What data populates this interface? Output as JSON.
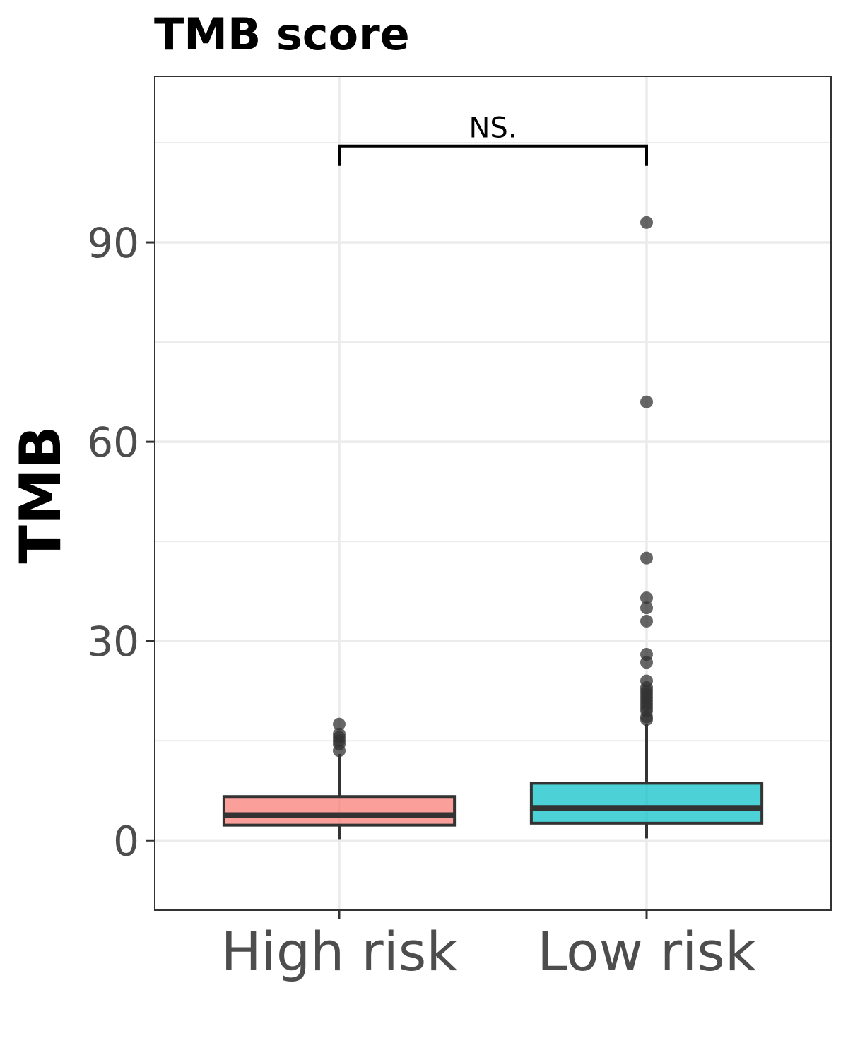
{
  "chart_data": {
    "type": "box",
    "title": "TMB score",
    "xlabel": "",
    "ylabel": "TMB",
    "ylim": [
      -10.5,
      115
    ],
    "yticks": [
      0,
      30,
      60,
      90
    ],
    "grid": true,
    "categories": [
      "High risk",
      "Low risk"
    ],
    "boxes": [
      {
        "name": "High risk",
        "color": "#F8766D",
        "min": 0.2,
        "q1": 2.3,
        "median": 3.8,
        "q3": 6.6,
        "whisker_high": 13.0,
        "outliers": [
          13.5,
          14.5,
          15.0,
          15.5,
          16.0,
          17.5
        ]
      },
      {
        "name": "Low risk",
        "color": "#00BFC4",
        "min": 0.3,
        "q1": 2.6,
        "median": 4.9,
        "q3": 8.6,
        "whisker_high": 17.5,
        "outliers": [
          18.2,
          18.6,
          19.5,
          20.0,
          20.5,
          21.0,
          21.5,
          22.0,
          22.5,
          23.0,
          24.0,
          26.8,
          28.0,
          33.0,
          35.0,
          36.5,
          42.5,
          66.0,
          93.0
        ]
      }
    ],
    "comparison": {
      "label": "NS.",
      "groups": [
        "High risk",
        "Low risk"
      ],
      "y": 104.5
    }
  }
}
